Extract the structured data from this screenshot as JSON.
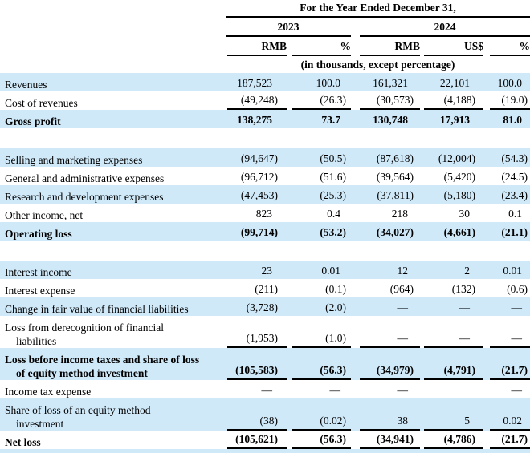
{
  "table": {
    "title": "For the Year Ended December 31,",
    "year_groups": [
      {
        "label": "2023",
        "columns": [
          "RMB",
          "%"
        ]
      },
      {
        "label": "2024",
        "columns": [
          "RMB",
          "US$",
          "%"
        ]
      }
    ],
    "columns": [
      "RMB",
      "%",
      "RMB",
      "US$",
      "%"
    ],
    "subheader": "(in thousands, except percentage)",
    "shade_color": "#cfe9f9",
    "rows": [
      {
        "label": [
          "Revenues"
        ],
        "values": [
          "187,523",
          "100.0",
          "161,321",
          "22,101",
          "100.0"
        ],
        "bold": false,
        "shade": true,
        "underline": false
      },
      {
        "label": [
          "Cost of revenues"
        ],
        "values": [
          "(49,248)",
          "(26.3)",
          "(30,573)",
          "(4,188)",
          "(19.0)"
        ],
        "bold": false,
        "shade": false,
        "underline": true
      },
      {
        "label": [
          "Gross profit"
        ],
        "values": [
          "138,275",
          "73.7",
          "130,748",
          "17,913",
          "81.0"
        ],
        "bold": true,
        "shade": true,
        "underline": false
      },
      {
        "spacer": true
      },
      {
        "label": [
          "Selling and marketing expenses"
        ],
        "values": [
          "(94,647)",
          "(50.5)",
          "(87,618)",
          "(12,004)",
          "(54.3)"
        ],
        "bold": false,
        "shade": true,
        "underline": false
      },
      {
        "label": [
          "General and administrative expenses"
        ],
        "values": [
          "(96,712)",
          "(51.6)",
          "(39,564)",
          "(5,420)",
          "(24.5)"
        ],
        "bold": false,
        "shade": false,
        "underline": false
      },
      {
        "label": [
          "Research and development expenses"
        ],
        "values": [
          "(47,453)",
          "(25.3)",
          "(37,811)",
          "(5,180)",
          "(23.4)"
        ],
        "bold": false,
        "shade": true,
        "underline": false
      },
      {
        "label": [
          "Other income, net"
        ],
        "values": [
          "823",
          "0.4",
          "218",
          "30",
          "0.1"
        ],
        "bold": false,
        "shade": false,
        "underline": false
      },
      {
        "label": [
          "Operating loss"
        ],
        "values": [
          "(99,714)",
          "(53.2)",
          "(34,027)",
          "(4,661)",
          "(21.1)"
        ],
        "bold": true,
        "shade": true,
        "underline": false
      },
      {
        "spacer": true
      },
      {
        "label": [
          "Interest income"
        ],
        "values": [
          "23",
          "0.01",
          "12",
          "2",
          "0.01"
        ],
        "bold": false,
        "shade": true,
        "underline": false
      },
      {
        "label": [
          "Interest expense"
        ],
        "values": [
          "(211)",
          "(0.1)",
          "(964)",
          "(132)",
          "(0.6)"
        ],
        "bold": false,
        "shade": false,
        "underline": false
      },
      {
        "label": [
          "Change in fair value of financial liabilities"
        ],
        "values": [
          "(3,728)",
          "(2.0)",
          "—",
          "—",
          "—"
        ],
        "bold": false,
        "shade": true,
        "underline": false
      },
      {
        "label": [
          "Loss from derecognition of financial",
          "liabilities"
        ],
        "values": [
          "(1,953)",
          "(1.0)",
          "—",
          "—",
          "—"
        ],
        "bold": false,
        "shade": false,
        "underline": true
      },
      {
        "label": [
          "Loss before income taxes and share of loss",
          "of equity method investment"
        ],
        "values": [
          "(105,583)",
          "(56.3)",
          "(34,979)",
          "(4,791)",
          "(21.7)"
        ],
        "bold": true,
        "shade": true,
        "underline": true
      },
      {
        "label": [
          "Income tax expense"
        ],
        "values": [
          "—",
          "—",
          "—",
          "",
          "—"
        ],
        "bold": false,
        "shade": false,
        "underline": false
      },
      {
        "label": [
          "Share of loss of an equity method",
          "investment"
        ],
        "values": [
          "(38)",
          "(0.02)",
          "38",
          "5",
          "0.02"
        ],
        "bold": false,
        "shade": true,
        "underline": true
      },
      {
        "label": [
          "Net loss"
        ],
        "values": [
          "(105,621)",
          "(56.3)",
          "(34,941)",
          "(4,786)",
          "(21.7)"
        ],
        "bold": true,
        "shade": false,
        "underline": true
      }
    ]
  }
}
